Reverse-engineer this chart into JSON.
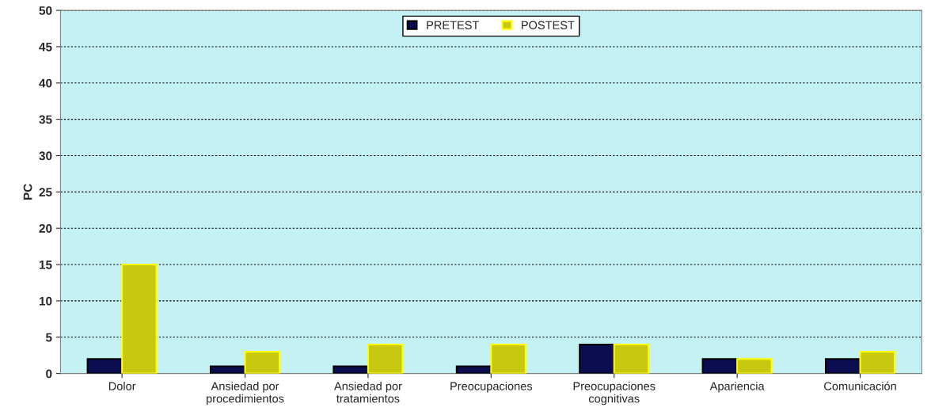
{
  "chart_data": {
    "type": "bar",
    "ylabel": "PC",
    "categories": [
      "Dolor",
      "Ansiedad por\nprocedimientos",
      "Ansiedad por\ntratamientos",
      "Preocupaciones",
      "Preocupaciones\ncognitivas",
      "Apariencia",
      "Comunicación"
    ],
    "series": [
      {
        "name": "PRETEST",
        "color": "#0c0c50",
        "values": [
          2,
          1,
          1,
          1,
          4,
          2,
          2
        ]
      },
      {
        "name": "POSTEST",
        "color": "#c8c810",
        "values": [
          15,
          3,
          4,
          4,
          4,
          2,
          3
        ]
      }
    ],
    "ylim": [
      0,
      50
    ],
    "yticks": [
      0,
      5,
      10,
      15,
      20,
      25,
      30,
      35,
      40,
      45,
      50
    ],
    "grid": "y",
    "legend": "top"
  }
}
